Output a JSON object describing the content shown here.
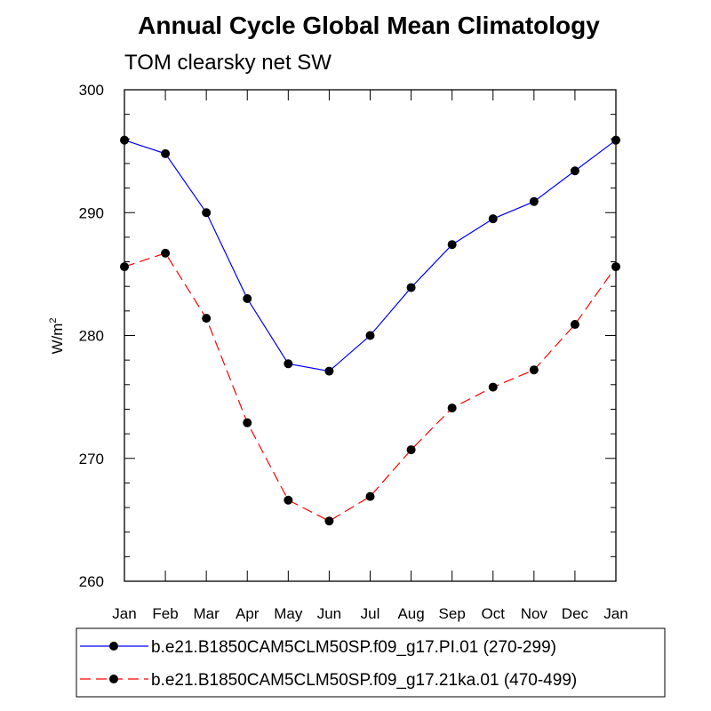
{
  "chart_data": {
    "type": "line",
    "title": "Annual Cycle Global Mean Climatology",
    "subtitle": "TOM clearsky net SW",
    "xlabel": "",
    "ylabel": "W/m",
    "ylabel_sup": "2",
    "categories": [
      "Jan",
      "Feb",
      "Mar",
      "Apr",
      "May",
      "Jun",
      "Jul",
      "Aug",
      "Sep",
      "Oct",
      "Nov",
      "Dec",
      "Jan"
    ],
    "ylim": [
      260,
      300
    ],
    "yticks": [
      260,
      270,
      280,
      290,
      300
    ],
    "series": [
      {
        "name": "b.e21.B1850CAM5CLM50SP.f09_g17.PI.01 (270-299)",
        "color": "#0000ff",
        "dash": "solid",
        "values": [
          295.9,
          294.8,
          290.0,
          283.0,
          277.7,
          277.1,
          280.0,
          283.9,
          287.4,
          289.5,
          290.9,
          293.4,
          295.9
        ]
      },
      {
        "name": "b.e21.B1850CAM5CLM50SP.f09_g17.21ka.01 (470-499)",
        "color": "#ff0000",
        "dash": "dashed",
        "values": [
          285.6,
          286.7,
          281.4,
          272.9,
          266.6,
          264.9,
          266.9,
          270.7,
          274.1,
          275.8,
          277.2,
          280.9,
          285.6
        ]
      }
    ],
    "marker_color": "#000000",
    "legend_position": "bottom"
  }
}
